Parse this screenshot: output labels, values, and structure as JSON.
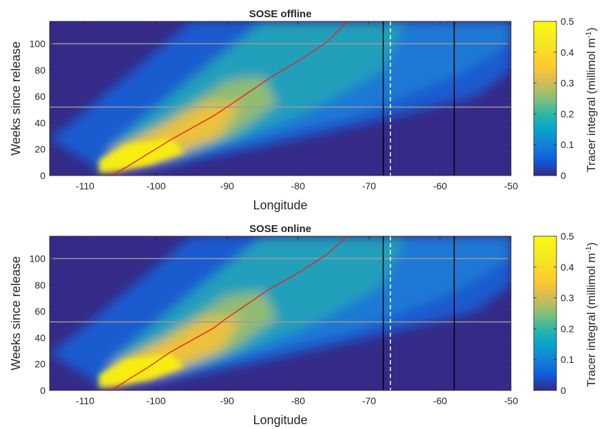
{
  "chart_data": [
    {
      "type": "heatmap",
      "title": "SOSE offline",
      "xlabel": "Longitude",
      "ylabel": "Weeks since release",
      "xlim": [
        -115,
        -50
      ],
      "ylim": [
        0,
        117
      ],
      "xticks": [
        -110,
        -100,
        -90,
        -80,
        -70,
        -60,
        -50
      ],
      "yticks": [
        0,
        20,
        40,
        60,
        80,
        100
      ],
      "colorbar": {
        "label": "Tracer integral (millimol m",
        "label_sup": "-1",
        "label_close": ")",
        "range": [
          0,
          0.5
        ],
        "ticks": [
          0,
          0.1,
          0.2,
          0.3,
          0.4,
          0.5
        ]
      },
      "horizontal_lines": [
        {
          "y": 52,
          "color": "#9a9a9a"
        },
        {
          "y": 100,
          "color": "#9a9a9a"
        }
      ],
      "vertical_lines": [
        {
          "x": -68,
          "color": "#000000",
          "style": "solid"
        },
        {
          "x": -67,
          "color": "#ffffff",
          "style": "dashed"
        },
        {
          "x": -58,
          "color": "#000000",
          "style": "solid"
        }
      ],
      "front_line": {
        "color": "#e8231f",
        "x": [
          -107,
          -106,
          -104,
          -101,
          -98,
          -95,
          -92,
          -90,
          -87,
          -84,
          -80,
          -76,
          -73
        ],
        "y": [
          0,
          1,
          7,
          17,
          27,
          36,
          45,
          52,
          63,
          74,
          87,
          101,
          117
        ]
      }
    },
    {
      "type": "heatmap",
      "title": "SOSE online",
      "xlabel": "Longitude",
      "ylabel": "Weeks since release",
      "xlim": [
        -115,
        -50
      ],
      "ylim": [
        0,
        117
      ],
      "xticks": [
        -110,
        -100,
        -90,
        -80,
        -70,
        -60,
        -50
      ],
      "yticks": [
        0,
        20,
        40,
        60,
        80,
        100
      ],
      "colorbar": {
        "label": "Tracer integral (millimol m",
        "label_sup": "-1",
        "label_close": ")",
        "range": [
          0,
          0.5
        ],
        "ticks": [
          0,
          0.1,
          0.2,
          0.3,
          0.4,
          0.5
        ]
      },
      "horizontal_lines": [
        {
          "y": 52,
          "color": "#9a9a9a"
        },
        {
          "y": 100,
          "color": "#9a9a9a"
        }
      ],
      "vertical_lines": [
        {
          "x": -68,
          "color": "#000000",
          "style": "solid"
        },
        {
          "x": -67,
          "color": "#ffffff",
          "style": "dashed"
        },
        {
          "x": -58,
          "color": "#000000",
          "style": "solid"
        }
      ],
      "front_line": {
        "color": "#e8231f",
        "x": [
          -107,
          -106,
          -104,
          -101,
          -98,
          -95,
          -92,
          -90,
          -87,
          -84,
          -80,
          -76,
          -73
        ],
        "y": [
          0,
          1,
          8,
          18,
          29,
          38,
          47,
          55,
          66,
          77,
          89,
          103,
          117
        ]
      }
    }
  ]
}
